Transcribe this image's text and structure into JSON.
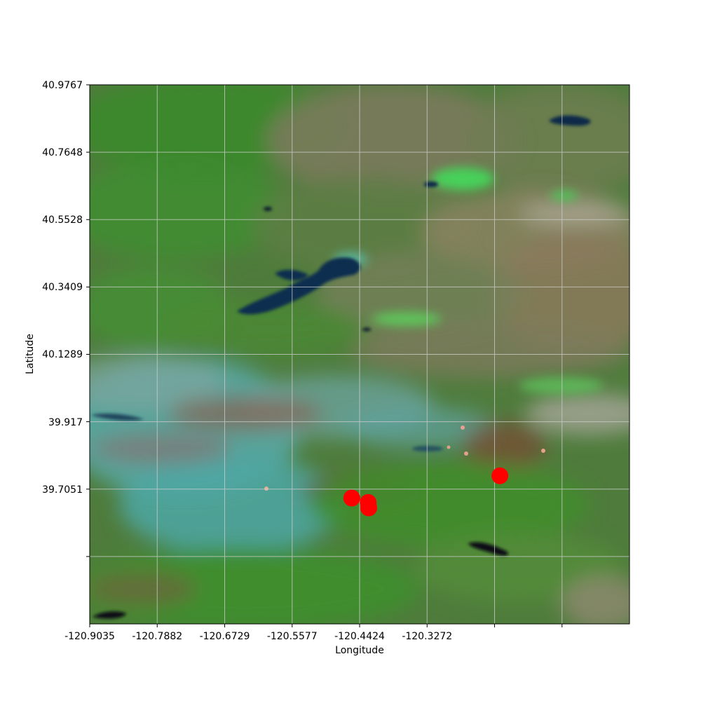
{
  "chart_data": {
    "type": "scatter",
    "base_layer": "satellite false-color imagery",
    "xlabel": "Longitude",
    "ylabel": "Latitude",
    "x_ticks": [
      "-120.9035",
      "-120.7882",
      "-120.6729",
      "-120.5577",
      "-120.4424",
      "-120.3272",
      "",
      ""
    ],
    "y_ticks": [
      "40.9767",
      "40.7648",
      "40.5528",
      "40.3409",
      "40.1289",
      "39.917",
      "39.7051",
      ""
    ],
    "xlim": [
      -120.9035,
      -119.9817
    ],
    "ylim": [
      39.2812,
      40.9767
    ],
    "grid": true,
    "series": [
      {
        "marker_color": "#ff0000",
        "points": [
          {
            "x": -120.456,
            "y": 39.677
          },
          {
            "x": -120.428,
            "y": 39.663
          },
          {
            "x": -120.427,
            "y": 39.646
          },
          {
            "x": -120.203,
            "y": 39.747
          }
        ]
      }
    ]
  },
  "colors": {
    "marker": "#ff0000",
    "grid": "#cfcfcf",
    "water": "#0d2a4a",
    "vegetation": "#3f8a2e",
    "smoke": "#4fa8a8",
    "bare_ground": "#8c7f5e"
  }
}
